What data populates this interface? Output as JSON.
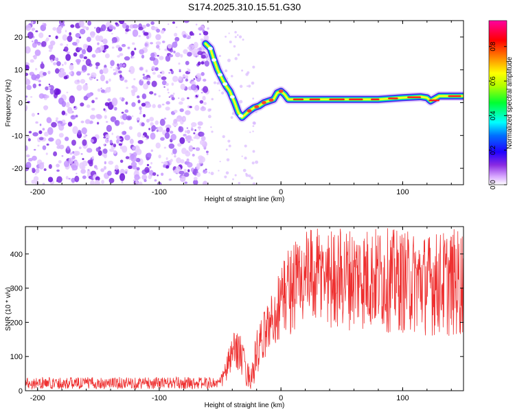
{
  "title": "S174.2025.310.15.51.G30",
  "chart_data": [
    {
      "type": "heatmap",
      "name": "spectrogram",
      "xlabel": "Height of straight line (km)",
      "ylabel": "Frequency (Hz)",
      "xlim": [
        -210,
        150
      ],
      "ylim": [
        -25,
        25
      ],
      "xticks": [
        -200,
        -100,
        0,
        100
      ],
      "yticks": [
        -20,
        -10,
        0,
        10,
        20
      ],
      "colorbar": {
        "label": "Normalized spectral amplitude",
        "range": [
          0,
          0.95
        ],
        "ticks": [
          0.0,
          0.2,
          0.4,
          0.6,
          0.8
        ],
        "colors": [
          "#ffffff",
          "#c070ff",
          "#3000ff",
          "#0090ff",
          "#00ffff",
          "#00ff40",
          "#a0ff00",
          "#ffff00",
          "#ff8000",
          "#ff0000",
          "#ff00a0"
        ]
      },
      "noise_region": {
        "x": [
          -210,
          -60
        ],
        "y": [
          -25,
          25
        ]
      },
      "ridge": {
        "x": [
          -62,
          -58,
          -55,
          -52,
          -48,
          -45,
          -42,
          -38,
          -35,
          -32,
          -29,
          -26,
          -22,
          -18,
          -14,
          -10,
          -6,
          -3,
          0,
          3,
          6,
          10,
          20,
          40,
          60,
          80,
          100,
          115,
          120,
          123,
          130,
          150
        ],
        "y": [
          18,
          16.5,
          13,
          10,
          7,
          5,
          3.5,
          0,
          -3,
          -4.5,
          -3.5,
          -2.5,
          -1.5,
          -1,
          0,
          0.5,
          1,
          3,
          3.5,
          2.5,
          1,
          1,
          1,
          1,
          1,
          1,
          1.5,
          1.8,
          1.5,
          0.5,
          2,
          2
        ]
      }
    },
    {
      "type": "line",
      "name": "snr",
      "xlabel": "Height of straight line (km)",
      "ylabel": "SNR (10 * v/v)",
      "xlim": [
        -210,
        150
      ],
      "ylim": [
        0,
        480
      ],
      "xticks": [
        -200,
        -100,
        0,
        100
      ],
      "yticks": [
        0,
        100,
        200,
        300,
        400
      ],
      "color": "#ee3030",
      "envelope": {
        "x": [
          -210,
          -50,
          -45,
          -40,
          -35,
          -30,
          -25,
          -20,
          -15,
          -10,
          -5,
          0,
          10,
          20,
          40,
          60,
          80,
          100,
          120,
          150
        ],
        "low": [
          5,
          5,
          20,
          60,
          60,
          15,
          5,
          15,
          80,
          120,
          130,
          150,
          165,
          180,
          180,
          175,
          170,
          165,
          160,
          150
        ],
        "high": [
          40,
          40,
          100,
          160,
          190,
          120,
          60,
          180,
          220,
          270,
          310,
          380,
          450,
          470,
          480,
          480,
          480,
          470,
          460,
          480
        ]
      }
    }
  ]
}
